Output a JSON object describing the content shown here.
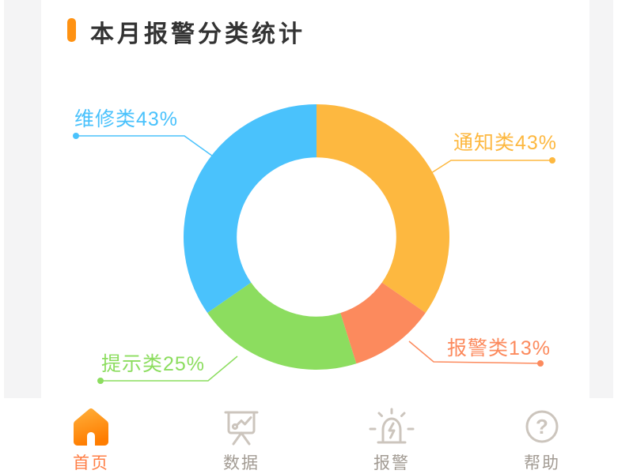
{
  "header": {
    "title": "本月报警分类统计"
  },
  "chart_data": {
    "type": "pie",
    "subtype": "donut",
    "title": "本月报警分类统计",
    "start_angle_deg": 0,
    "clockwise": true,
    "inner_radius_ratio": 0.6,
    "legend_position": "callout-labels",
    "series": [
      {
        "name": "通知类",
        "value": 43,
        "label": "通知类43%",
        "color": "#FDB840"
      },
      {
        "name": "报警类",
        "value": 13,
        "label": "报警类13%",
        "color": "#FC8A5D"
      },
      {
        "name": "提示类",
        "value": 25,
        "label": "提示类25%",
        "color": "#8CDD5F"
      },
      {
        "name": "维修类",
        "value": 43,
        "label": "维修类43%",
        "color": "#4AC2FC"
      }
    ]
  },
  "tabbar": {
    "items": [
      {
        "label": "首页",
        "icon": "home-icon",
        "active": true
      },
      {
        "label": "数据",
        "icon": "data-chart-icon",
        "active": false
      },
      {
        "label": "报警",
        "icon": "alarm-siren-icon",
        "active": false
      },
      {
        "label": "帮助",
        "icon": "help-icon",
        "active": false
      }
    ]
  },
  "colors": {
    "accent_orange": "#FF9212",
    "title_text": "#333333",
    "page_background_gray": "#F4F4F5",
    "card_background": "#FFFFFF",
    "nav_active_text": "#FF7E45",
    "nav_inactive_icon": "#CCC5BD",
    "nav_inactive_text": "#A29B93",
    "home_gradient_top": "#FFB13C",
    "home_gradient_bottom": "#FF7D00"
  }
}
